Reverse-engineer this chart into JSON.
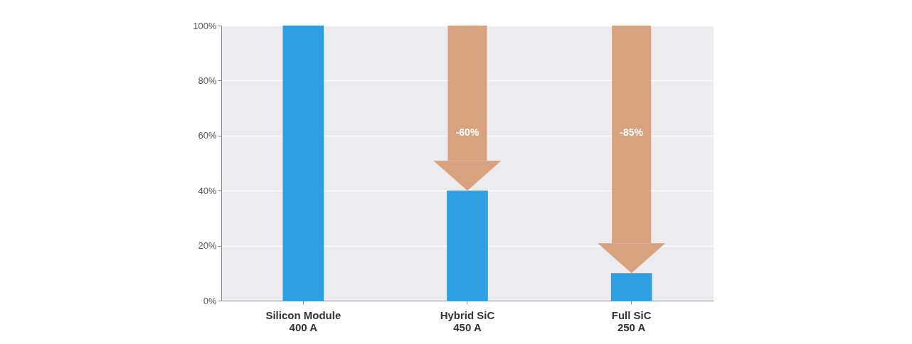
{
  "chart_data": {
    "type": "bar",
    "categories": [
      "Silicon Module\n400 A",
      "Hybrid SiC\n450 A",
      "Full SiC\n250 A"
    ],
    "values": [
      100,
      40,
      10
    ],
    "color": "#2e9fe2",
    "ylim": [
      0,
      100
    ],
    "yticks": [
      {
        "value": 0,
        "label": "0%"
      },
      {
        "value": 20,
        "label": "20%"
      },
      {
        "value": 40,
        "label": "40%"
      },
      {
        "value": 60,
        "label": "60%"
      },
      {
        "value": 80,
        "label": "80%"
      },
      {
        "value": 100,
        "label": "100%"
      }
    ],
    "grid": "y",
    "annotations": [
      "-60%",
      "-85%"
    ]
  }
}
